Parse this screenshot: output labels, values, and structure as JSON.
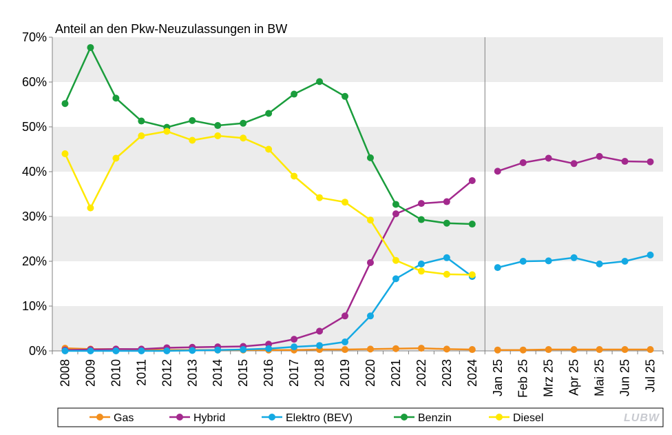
{
  "chart_data": {
    "type": "line",
    "title": "Anteil an den Pkw-Neuzulassungen  in BW",
    "xlabel": "",
    "ylabel": "",
    "ylim": [
      0,
      70
    ],
    "yticks": [
      "0%",
      "10%",
      "20%",
      "30%",
      "40%",
      "50%",
      "60%",
      "70%"
    ],
    "grid": "alternating horizontal bands",
    "legend_position": "bottom",
    "logo": "LUBW",
    "categories": [
      "2008",
      "2009",
      "2010",
      "2011",
      "2012",
      "2013",
      "2014",
      "2015",
      "2016",
      "2017",
      "2018",
      "2019",
      "2020",
      "2021",
      "2022",
      "2023",
      "2024",
      "Jan 25",
      "Feb 25",
      "Mrz 25",
      "Apr 25",
      "Mai 25",
      "Jun 25",
      "Jul 25"
    ],
    "break_after": "2024",
    "series": [
      {
        "name": "Gas",
        "color": "#f28e1c",
        "values": [
          0.6,
          0.4,
          0.4,
          0.3,
          0.2,
          0.2,
          0.2,
          0.2,
          0.2,
          0.2,
          0.3,
          0.3,
          0.4,
          0.5,
          0.6,
          0.4,
          0.3,
          0.2,
          0.2,
          0.3,
          0.3,
          0.3,
          0.3,
          0.3
        ]
      },
      {
        "name": "Hybrid",
        "color": "#a3298d",
        "values": [
          0.2,
          0.3,
          0.4,
          0.4,
          0.7,
          0.8,
          0.9,
          1.0,
          1.5,
          2.6,
          4.4,
          7.8,
          19.7,
          30.6,
          32.9,
          33.3,
          38.0,
          40.1,
          42.0,
          43.0,
          41.8,
          43.4,
          42.3,
          42.2
        ]
      },
      {
        "name": "Elektro (BEV)",
        "color": "#14a9e3",
        "values": [
          0.0,
          0.0,
          0.0,
          0.0,
          0.0,
          0.1,
          0.2,
          0.3,
          0.5,
          0.9,
          1.2,
          2.0,
          7.8,
          16.1,
          19.4,
          20.8,
          16.6,
          18.6,
          20.0,
          20.1,
          20.8,
          19.4,
          20.0,
          21.4
        ]
      },
      {
        "name": "Benzin",
        "color": "#1a9d3c",
        "values": [
          55.2,
          67.7,
          56.4,
          51.3,
          49.9,
          51.4,
          50.3,
          50.8,
          53.0,
          57.3,
          60.1,
          56.8,
          43.1,
          32.7,
          29.3,
          28.5,
          28.3,
          null,
          null,
          null,
          null,
          null,
          null,
          null
        ]
      },
      {
        "name": "Diesel",
        "color": "#ffe800",
        "values": [
          44.0,
          31.9,
          43.0,
          48.0,
          49.0,
          47.0,
          48.0,
          47.5,
          45.0,
          39.0,
          34.2,
          33.2,
          29.2,
          20.2,
          17.8,
          17.1,
          17.0,
          null,
          null,
          null,
          null,
          null,
          null,
          null
        ]
      }
    ]
  }
}
